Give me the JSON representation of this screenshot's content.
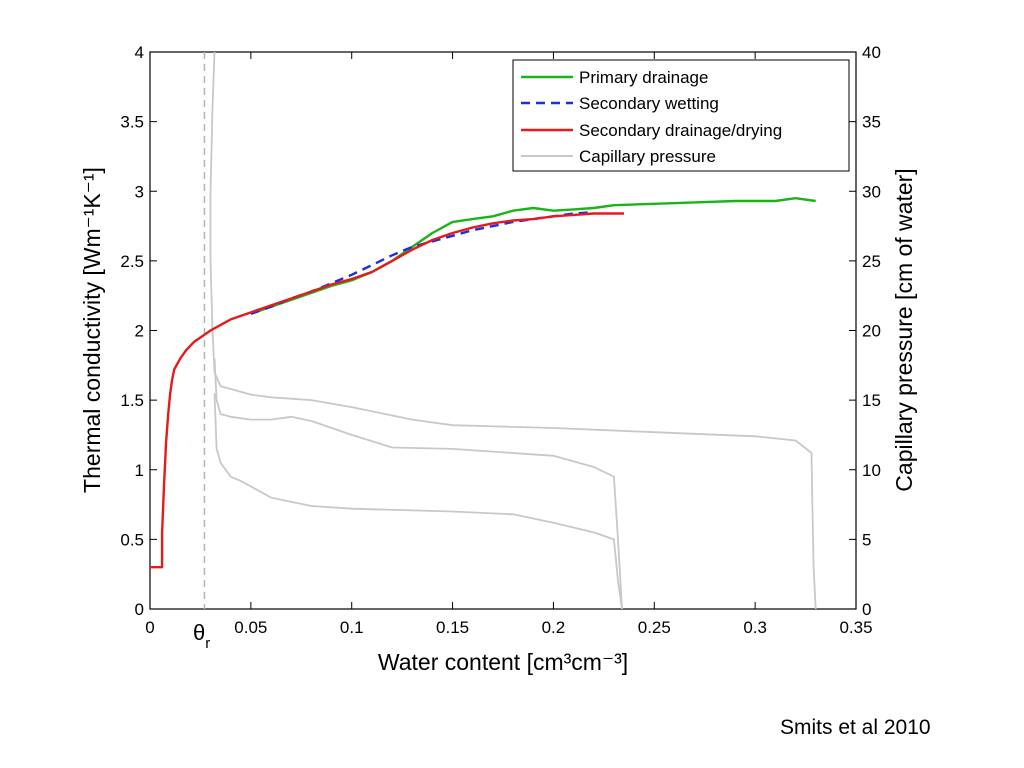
{
  "credit": "Smits et al 2010",
  "chart_data": {
    "type": "line",
    "xlabel": "Water content [cm³cm⁻³]",
    "ylabel_left": "Thermal conductivity [Wm⁻¹K⁻¹]",
    "ylabel_right": "Capillary pressure [cm of water]",
    "xlim": [
      0,
      0.35
    ],
    "ylim_left": [
      0,
      4
    ],
    "ylim_right": [
      0,
      40
    ],
    "x_ticks": [
      0,
      0.05,
      0.1,
      0.15,
      0.2,
      0.25,
      0.3,
      0.35
    ],
    "x_tick_labels": [
      "0",
      "0.05",
      "0.1",
      "0.15",
      "0.2",
      "0.25",
      "0.3",
      "0.35"
    ],
    "y_left_ticks": [
      0,
      0.5,
      1,
      1.5,
      2,
      2.5,
      3,
      3.5,
      4
    ],
    "y_left_tick_labels": [
      "0",
      "0.5",
      "1",
      "1.5",
      "2",
      "2.5",
      "3",
      "3.5",
      "4"
    ],
    "y_right_ticks": [
      0,
      5,
      10,
      15,
      20,
      25,
      30,
      35,
      40
    ],
    "y_right_tick_labels": [
      "0",
      "5",
      "10",
      "15",
      "20",
      "25",
      "30",
      "35",
      "40"
    ],
    "theta_r": {
      "x": 0.027,
      "label": "θ",
      "sub": "r",
      "color": "#b3b3b3"
    },
    "grid": false,
    "legend_position": "top-right",
    "series": [
      {
        "name": "Primary drainage",
        "axis": "left",
        "color": "#19b419",
        "dash": "solid",
        "x": [
          0.05,
          0.06,
          0.07,
          0.08,
          0.09,
          0.1,
          0.11,
          0.12,
          0.13,
          0.14,
          0.15,
          0.16,
          0.17,
          0.18,
          0.19,
          0.2,
          0.21,
          0.22,
          0.23,
          0.25,
          0.27,
          0.29,
          0.31,
          0.32,
          0.33
        ],
        "y": [
          2.12,
          2.17,
          2.22,
          2.27,
          2.32,
          2.36,
          2.42,
          2.5,
          2.6,
          2.7,
          2.78,
          2.8,
          2.82,
          2.86,
          2.88,
          2.86,
          2.87,
          2.88,
          2.9,
          2.91,
          2.92,
          2.93,
          2.93,
          2.95,
          2.93
        ]
      },
      {
        "name": "Secondary wetting",
        "axis": "left",
        "color": "#1a2ee6",
        "dash": "dashed",
        "x": [
          0.05,
          0.06,
          0.07,
          0.08,
          0.09,
          0.1,
          0.11,
          0.12,
          0.13,
          0.14,
          0.15,
          0.16,
          0.17,
          0.18,
          0.19,
          0.2,
          0.21,
          0.22
        ],
        "y": [
          2.12,
          2.17,
          2.23,
          2.28,
          2.34,
          2.4,
          2.47,
          2.54,
          2.6,
          2.64,
          2.68,
          2.72,
          2.75,
          2.78,
          2.8,
          2.82,
          2.84,
          2.85
        ]
      },
      {
        "name": "Secondary drainage/drying",
        "axis": "left",
        "color": "#e61a1a",
        "dash": "solid",
        "x": [
          0,
          0.006,
          0.006,
          0.007,
          0.008,
          0.009,
          0.01,
          0.011,
          0.012,
          0.015,
          0.018,
          0.022,
          0.026,
          0.03,
          0.035,
          0.04,
          0.05,
          0.06,
          0.07,
          0.08,
          0.09,
          0.1,
          0.11,
          0.12,
          0.13,
          0.14,
          0.15,
          0.16,
          0.17,
          0.18,
          0.19,
          0.2,
          0.21,
          0.22,
          0.23,
          0.235
        ],
        "y": [
          0.3,
          0.3,
          0.55,
          0.9,
          1.2,
          1.4,
          1.55,
          1.65,
          1.72,
          1.8,
          1.86,
          1.92,
          1.96,
          2.0,
          2.04,
          2.08,
          2.13,
          2.18,
          2.23,
          2.28,
          2.33,
          2.37,
          2.42,
          2.5,
          2.58,
          2.65,
          2.7,
          2.74,
          2.77,
          2.79,
          2.8,
          2.82,
          2.83,
          2.84,
          2.84,
          2.84
        ]
      },
      {
        "name": "Capillary pressure",
        "axis": "right",
        "color": "#c8c8c8",
        "dash": "solid",
        "x": [
          0.032,
          0.031,
          0.03,
          0.03,
          0.031,
          0.032,
          0.035,
          0.04,
          0.05,
          0.06,
          0.07,
          0.08,
          0.1,
          0.13,
          0.15,
          0.2,
          0.25,
          0.3,
          0.32,
          0.328,
          0.328,
          0.329,
          0.33
        ],
        "y": [
          40,
          36,
          30,
          25,
          20,
          17,
          16.0,
          15.8,
          15.4,
          15.2,
          15.1,
          15.0,
          14.5,
          13.6,
          13.2,
          13.0,
          12.7,
          12.4,
          12.1,
          11.2,
          10.5,
          3,
          0
        ]
      },
      {
        "name": "",
        "axis": "right",
        "color": "#c8c8c8",
        "dash": "solid",
        "x": [
          0.032,
          0.033,
          0.035,
          0.04,
          0.05,
          0.06,
          0.07,
          0.08,
          0.1,
          0.12,
          0.15,
          0.2,
          0.22,
          0.23,
          0.232,
          0.234
        ],
        "y": [
          18,
          15,
          14.0,
          13.8,
          13.6,
          13.6,
          13.8,
          13.5,
          12.5,
          11.6,
          11.5,
          11.0,
          10.2,
          9.5,
          5,
          0
        ]
      },
      {
        "name": "",
        "axis": "right",
        "color": "#c8c8c8",
        "dash": "solid",
        "x": [
          0.032,
          0.033,
          0.035,
          0.04,
          0.045,
          0.06,
          0.08,
          0.1,
          0.15,
          0.18,
          0.2,
          0.22,
          0.23,
          0.232,
          0.234
        ],
        "y": [
          15.5,
          11.5,
          10.5,
          9.5,
          9.2,
          8.0,
          7.4,
          7.2,
          7.0,
          6.8,
          6.2,
          5.5,
          5.0,
          2,
          0
        ]
      }
    ]
  }
}
